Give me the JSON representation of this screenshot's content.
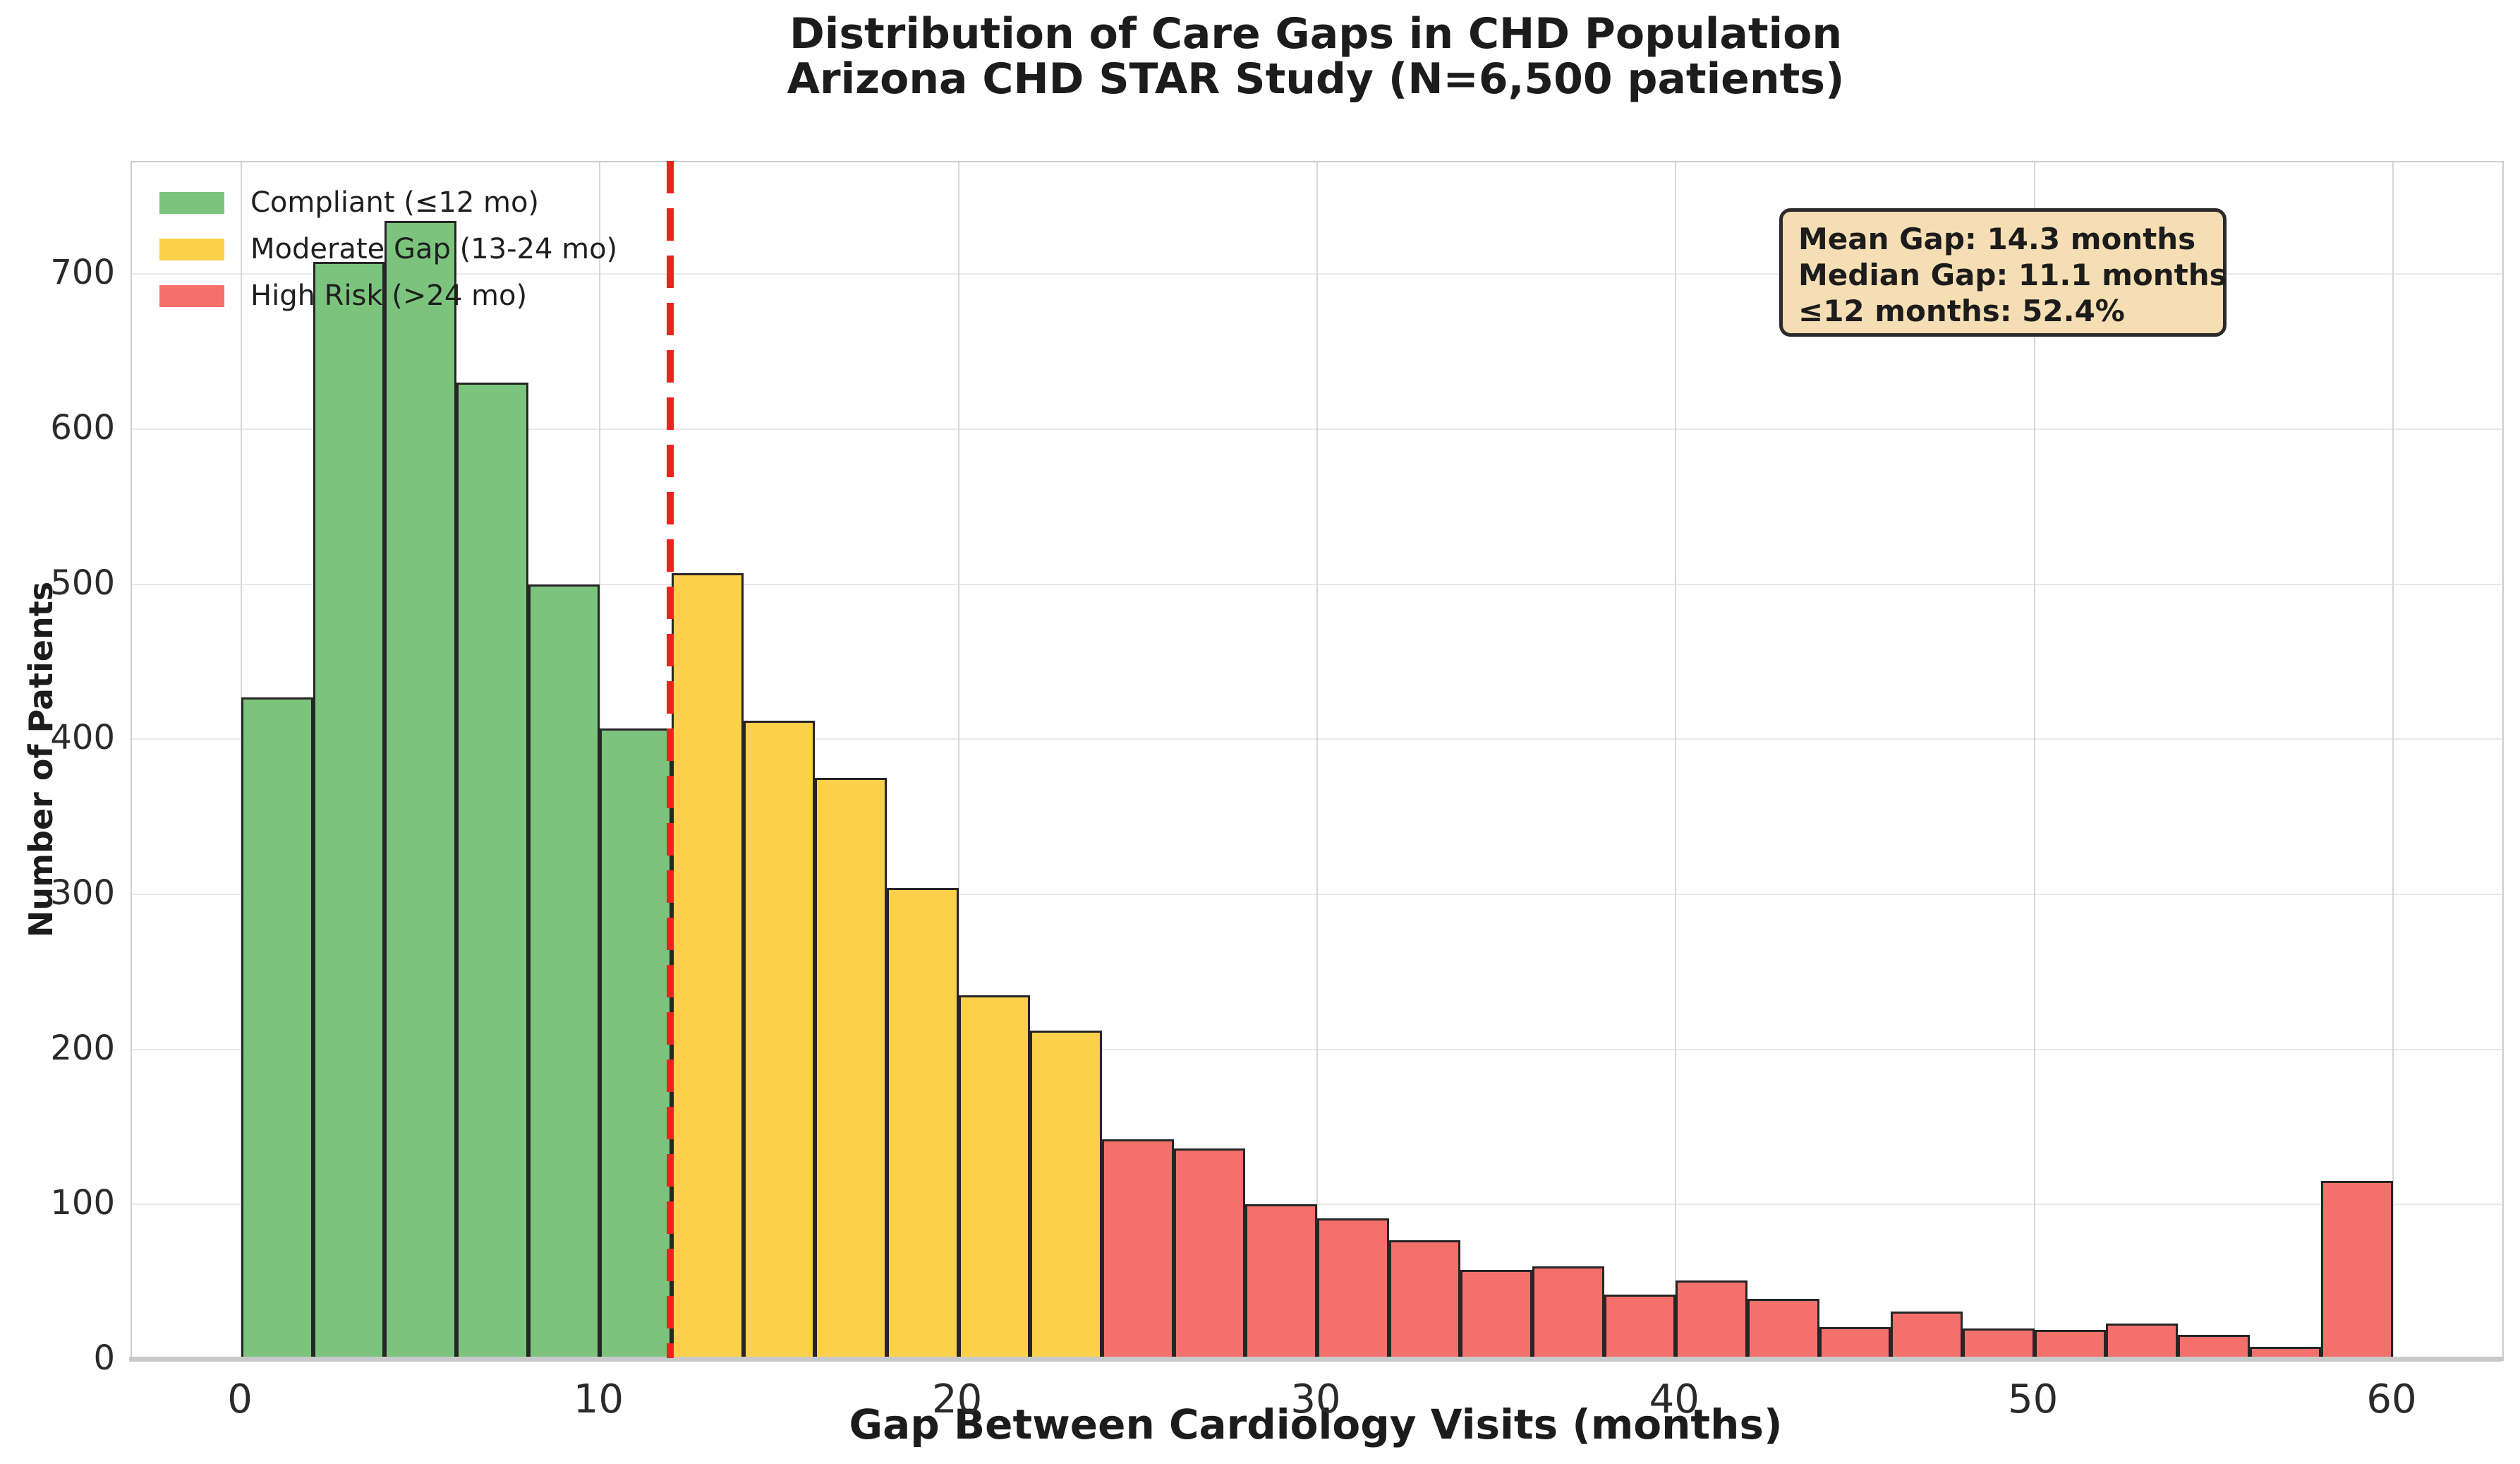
{
  "title": {
    "line1": "Distribution of Care Gaps in CHD Population",
    "line2": "Arizona CHD STAR Study (N=6,500 patients)"
  },
  "axes": {
    "xlabel": "Gap Between Cardiology Visits (months)",
    "ylabel": "Number of Patients",
    "x_ticks": [
      0,
      10,
      20,
      30,
      40,
      50,
      60
    ],
    "y_ticks": [
      0,
      100,
      200,
      300,
      400,
      500,
      600,
      700
    ]
  },
  "legend": {
    "items": [
      {
        "label": "Compliant (≤12 mo)",
        "color": "#7cc47e"
      },
      {
        "label": "Moderate Gap (13-24 mo)",
        "color": "#fdd04b"
      },
      {
        "label": "High Risk (>24 mo)",
        "color": "#f4716b"
      }
    ]
  },
  "annotation": {
    "line1": "Mean Gap: 14.3 months",
    "line2": "Median Gap: 11.1 months",
    "line3": "≤12 months: 52.4%",
    "background": "#f5deb3"
  },
  "chart_data": {
    "type": "bar",
    "subtype": "histogram",
    "title": "Distribution of Care Gaps in CHD Population — Arizona CHD STAR Study (N=6,500 patients)",
    "xlabel": "Gap Between Cardiology Visits (months)",
    "ylabel": "Number of Patients",
    "bin_width_months": 2,
    "bin_start": 0,
    "bin_counts": [
      427,
      708,
      734,
      630,
      500,
      407,
      507,
      412,
      375,
      304,
      235,
      212,
      142,
      136,
      100,
      91,
      77,
      58,
      60,
      42,
      51,
      39,
      21,
      31,
      20,
      19,
      23,
      16,
      8,
      115
    ],
    "category_thresholds": {
      "compliant_max": 12,
      "moderate_max": 24
    },
    "threshold_line_x": 12,
    "threshold_line_color": "#ee231d",
    "bar_edge_color": "#262626",
    "xlim": [
      -3.05,
      63.05
    ],
    "ylim": [
      0,
      772
    ],
    "grid": true,
    "legend_position": "upper left",
    "total_patients": 6500,
    "mean_gap_months": 14.3,
    "median_gap_months": 11.1,
    "pct_within_12_months": 52.4
  }
}
